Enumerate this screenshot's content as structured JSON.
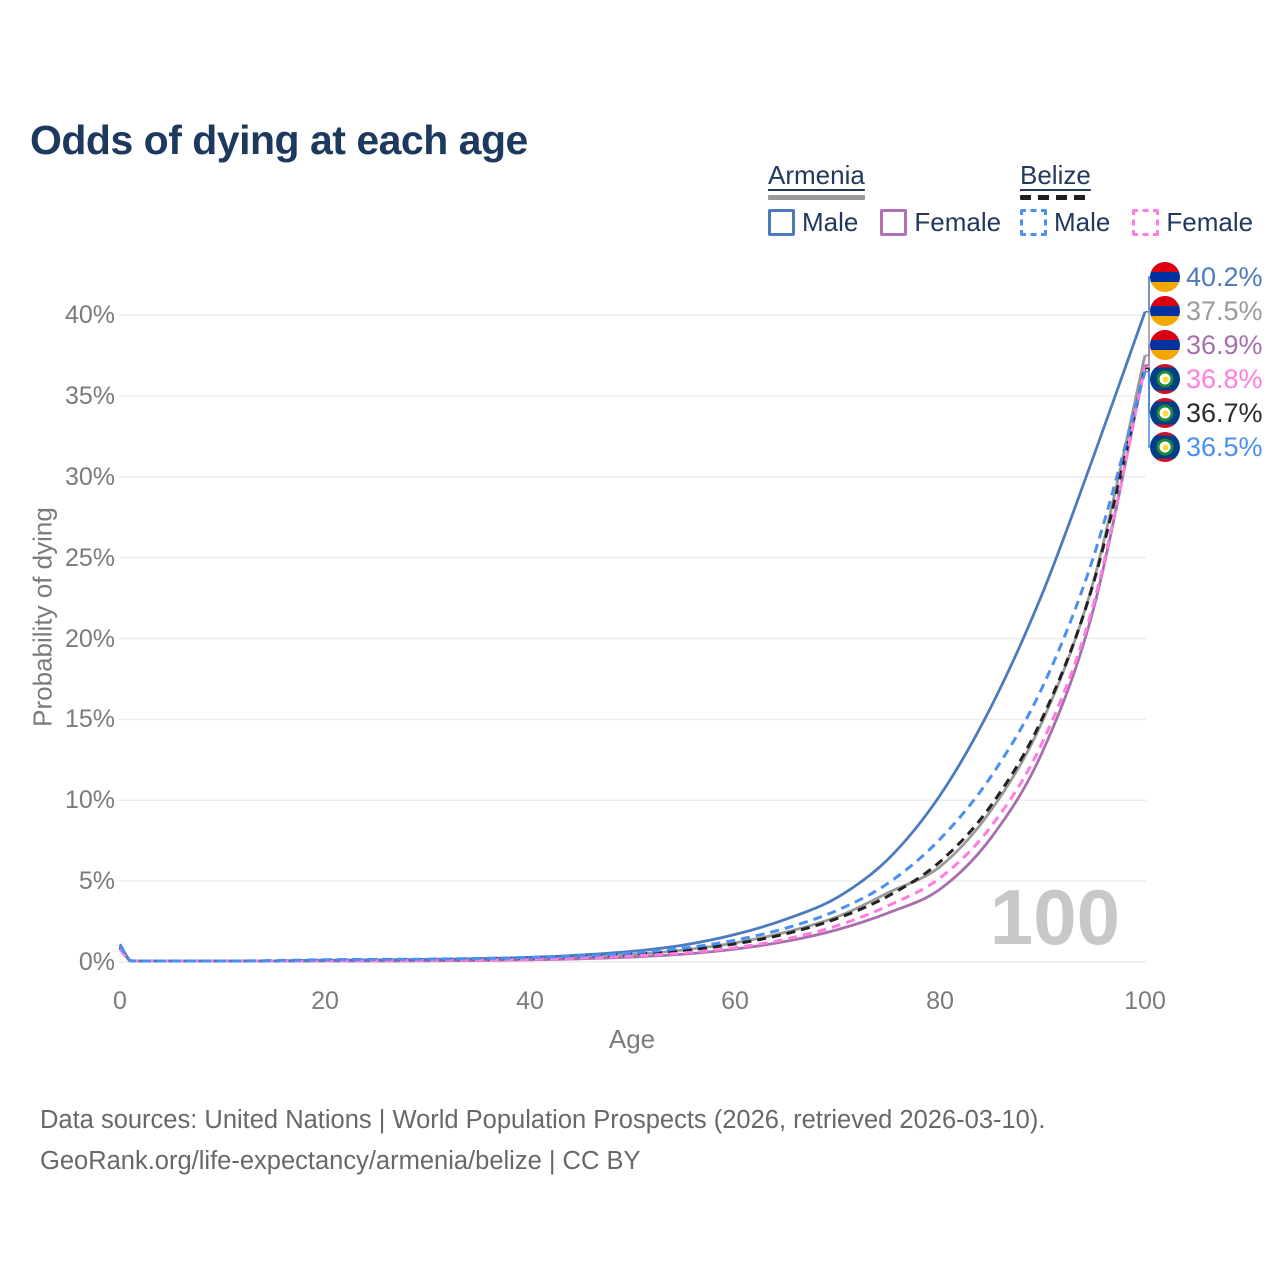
{
  "title": "Odds of dying at each age",
  "legend": {
    "position": "top-right",
    "groups": [
      {
        "country": "Armenia",
        "style": "solid",
        "bar_color": "#9a9a9a",
        "items": [
          {
            "label": "Male",
            "color": "#4b7bbd"
          },
          {
            "label": "Female",
            "color": "#b470b4"
          }
        ]
      },
      {
        "country": "Belize",
        "style": "dashed",
        "bar_color": "#1f1f1f",
        "items": [
          {
            "label": "Male",
            "color": "#4a90f2"
          },
          {
            "label": "Female",
            "color": "#ff7ce0"
          }
        ]
      }
    ]
  },
  "chart_data": {
    "type": "line",
    "title": "Odds of dying at each age",
    "xlabel": "Age",
    "ylabel": "Probability of dying",
    "xlim": [
      0,
      100
    ],
    "ylim": [
      0,
      42
    ],
    "grid": true,
    "x_ticks": {
      "values": [
        0,
        20,
        40,
        60,
        80,
        100
      ],
      "labels": [
        "0",
        "20",
        "40",
        "60",
        "80",
        "100"
      ]
    },
    "y_ticks": {
      "values": [
        0,
        5,
        10,
        15,
        20,
        25,
        30,
        35,
        40
      ],
      "labels": [
        "0%",
        "5%",
        "10%",
        "15%",
        "20%",
        "25%",
        "30%",
        "35%",
        "40%"
      ]
    },
    "ages": [
      0,
      1,
      2,
      5,
      10,
      15,
      20,
      25,
      30,
      35,
      40,
      45,
      50,
      55,
      60,
      65,
      70,
      75,
      80,
      85,
      90,
      95,
      100
    ],
    "series": [
      {
        "key": "armenia-all",
        "name": "Armenia",
        "country": "Armenia",
        "sex": "Both",
        "color": "#9a9a9a",
        "dash": false,
        "values": [
          1.0,
          0.07,
          0.04,
          0.03,
          0.03,
          0.05,
          0.08,
          0.09,
          0.11,
          0.15,
          0.21,
          0.31,
          0.47,
          0.74,
          1.18,
          1.85,
          2.8,
          4.3,
          5.9,
          9.4,
          14.9,
          23.6,
          37.5
        ],
        "end_value_pct": 37.5
      },
      {
        "key": "armenia-female",
        "name": "Armenia Female",
        "country": "Armenia",
        "sex": "Female",
        "color": "#a76fad",
        "dash": false,
        "values": [
          0.9,
          0.05,
          0.03,
          0.02,
          0.02,
          0.03,
          0.04,
          0.05,
          0.07,
          0.09,
          0.13,
          0.2,
          0.31,
          0.49,
          0.8,
          1.28,
          2.0,
          3.05,
          4.5,
          7.7,
          13.0,
          21.9,
          36.9
        ],
        "end_value_pct": 36.9
      },
      {
        "key": "armenia-male",
        "name": "Armenia Male",
        "country": "Armenia",
        "sex": "Male",
        "color": "#4b7bbd",
        "dash": false,
        "values": [
          1.1,
          0.08,
          0.05,
          0.04,
          0.04,
          0.07,
          0.11,
          0.13,
          0.16,
          0.21,
          0.29,
          0.43,
          0.66,
          1.05,
          1.7,
          2.65,
          4.0,
          6.4,
          10.3,
          15.8,
          22.8,
          31.3,
          40.2
        ],
        "end_value_pct": 40.2
      },
      {
        "key": "belize-all",
        "name": "Belize",
        "country": "Belize",
        "sex": "Both",
        "color": "#222222",
        "dash": true,
        "values": [
          0.9,
          0.07,
          0.05,
          0.04,
          0.04,
          0.07,
          0.11,
          0.13,
          0.15,
          0.18,
          0.23,
          0.32,
          0.47,
          0.72,
          1.12,
          1.75,
          2.7,
          4.1,
          6.2,
          9.7,
          15.1,
          23.5,
          36.7
        ],
        "end_value_pct": 36.7
      },
      {
        "key": "belize-female",
        "name": "Belize Female",
        "country": "Belize",
        "sex": "Female",
        "color": "#ff7ce0",
        "dash": true,
        "values": [
          0.8,
          0.06,
          0.04,
          0.03,
          0.03,
          0.05,
          0.07,
          0.08,
          0.1,
          0.13,
          0.17,
          0.25,
          0.37,
          0.56,
          0.88,
          1.42,
          2.25,
          3.5,
          5.2,
          8.4,
          13.6,
          22.2,
          36.8
        ],
        "end_value_pct": 36.8
      },
      {
        "key": "belize-male",
        "name": "Belize Male",
        "country": "Belize",
        "sex": "Male",
        "color": "#4a90f2",
        "dash": true,
        "values": [
          1.0,
          0.08,
          0.06,
          0.05,
          0.05,
          0.09,
          0.14,
          0.16,
          0.18,
          0.22,
          0.28,
          0.38,
          0.56,
          0.86,
          1.35,
          2.1,
          3.2,
          4.9,
          7.6,
          11.5,
          17.0,
          25.1,
          36.5
        ],
        "end_value_pct": 36.5
      }
    ]
  },
  "end_labels": [
    {
      "text": "40.2%",
      "series": "armenia-male",
      "color": "#4b7bbd",
      "flag": "armenia"
    },
    {
      "text": "37.5%",
      "series": "armenia-all",
      "color": "#9a9a9a",
      "flag": "armenia"
    },
    {
      "text": "36.9%",
      "series": "armenia-female",
      "color": "#a76fad",
      "flag": "armenia"
    },
    {
      "text": "36.8%",
      "series": "belize-female",
      "color": "#ff7ce0",
      "flag": "belize"
    },
    {
      "text": "36.7%",
      "series": "belize-all",
      "color": "#2b2b2b",
      "flag": "belize"
    },
    {
      "text": "36.5%",
      "series": "belize-male",
      "color": "#4a90f2",
      "flag": "belize"
    }
  ],
  "flags": {
    "armenia": [
      "#d90012",
      "#0033a0",
      "#f2a800"
    ],
    "belize": {
      "red": "#ce1126",
      "blue": "#003f87",
      "green": "#1c8a3c",
      "yellow": "#ffd83c"
    }
  },
  "watermark": "100",
  "footer": {
    "line1": "Data sources: United Nations | World Population Prospects (2026, retrieved 2026-03-10).",
    "line2": "GeoRank.org/life-expectancy/armenia/belize | CC BY"
  },
  "colors": {
    "title": "#1d3a5e",
    "legend_text": "#21395c",
    "axis_text": "#7b7b7b",
    "gridline": "#ececec",
    "watermark": "#c8c8c8",
    "footer_text": "#686868"
  }
}
